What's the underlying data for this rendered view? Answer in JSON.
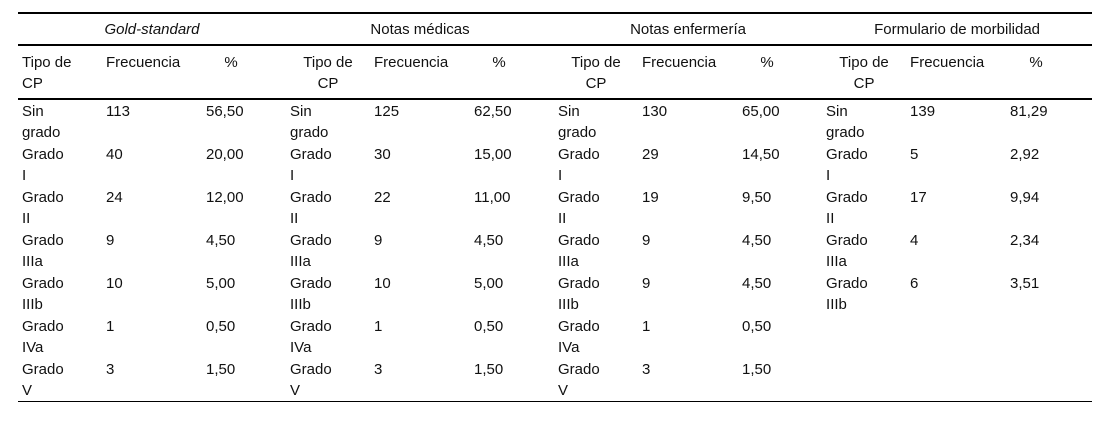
{
  "colors": {
    "background": "#ffffff",
    "text": "#111111",
    "rule": "#000000"
  },
  "table": {
    "groups": [
      {
        "title": "Gold-standard",
        "columns": [
          "Tipo de\nCP",
          "Frecuencia",
          "%"
        ],
        "rows": [
          [
            "Sin\ngrado",
            "113",
            "56,50"
          ],
          [
            "Grado\nI",
            "40",
            "20,00"
          ],
          [
            "Grado\nII",
            "24",
            "12,00"
          ],
          [
            "Grado\nIIIa",
            "9",
            "4,50"
          ],
          [
            "Grado\nIIIb",
            "10",
            "5,00"
          ],
          [
            "Grado\nIVa",
            "1",
            "0,50"
          ],
          [
            "Grado\nV",
            "3",
            "1,50"
          ]
        ]
      },
      {
        "title": "Notas médicas",
        "columns": [
          "Tipo de\nCP",
          "Frecuencia",
          "%"
        ],
        "rows": [
          [
            "Sin\ngrado",
            "125",
            "62,50"
          ],
          [
            "Grado\nI",
            "30",
            "15,00"
          ],
          [
            "Grado\nII",
            "22",
            "11,00"
          ],
          [
            "Grado\nIIIa",
            "9",
            "4,50"
          ],
          [
            "Grado\nIIIb",
            "10",
            "5,00"
          ],
          [
            "Grado\nIVa",
            "1",
            "0,50"
          ],
          [
            "Grado\nV",
            "3",
            "1,50"
          ]
        ]
      },
      {
        "title": "Notas enfermería",
        "columns": [
          "Tipo de\nCP",
          "Frecuencia",
          "%"
        ],
        "rows": [
          [
            "Sin\ngrado",
            "130",
            "65,00"
          ],
          [
            "Grado\nI",
            "29",
            "14,50"
          ],
          [
            "Grado\nII",
            "19",
            "9,50"
          ],
          [
            "Grado\nIIIa",
            "9",
            "4,50"
          ],
          [
            "Grado\nIIIb",
            "9",
            "4,50"
          ],
          [
            "Grado\nIVa",
            "1",
            "0,50"
          ],
          [
            "Grado\nV",
            "3",
            "1,50"
          ]
        ]
      },
      {
        "title": "Formulario de morbilidad",
        "columns": [
          "Tipo de\nCP",
          "Frecuencia",
          "%"
        ],
        "rows": [
          [
            "Sin\ngrado",
            "139",
            "81,29"
          ],
          [
            "Grado\nI",
            "5",
            "2,92"
          ],
          [
            "Grado\nII",
            "17",
            "9,94"
          ],
          [
            "Grado\nIIIa",
            "4",
            "2,34"
          ],
          [
            "Grado\nIIIb",
            "6",
            "3,51"
          ]
        ]
      }
    ]
  }
}
